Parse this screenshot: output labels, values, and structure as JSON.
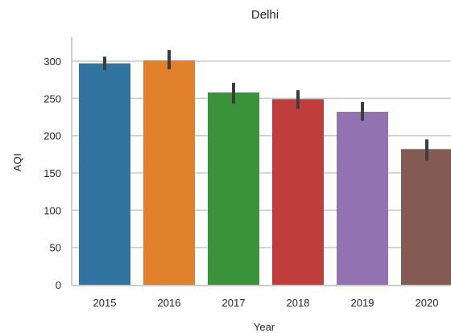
{
  "chart_data": {
    "type": "bar",
    "title": "Delhi",
    "xlabel": "Year",
    "ylabel": "AQI",
    "categories": [
      "2015",
      "2016",
      "2017",
      "2018",
      "2019",
      "2020"
    ],
    "values": [
      297,
      301,
      258,
      249,
      232,
      182
    ],
    "error_low": [
      288,
      289,
      243,
      236,
      220,
      167
    ],
    "error_high": [
      306,
      315,
      271,
      261,
      245,
      195
    ],
    "colors": [
      "#3274a1",
      "#e1812c",
      "#3a923a",
      "#c03d3e",
      "#9372b2",
      "#845b53"
    ],
    "error_color": "#3d3d3d",
    "ylim": [
      0,
      330
    ],
    "yticks": [
      0,
      50,
      100,
      150,
      200,
      250,
      300
    ],
    "grid": true
  }
}
